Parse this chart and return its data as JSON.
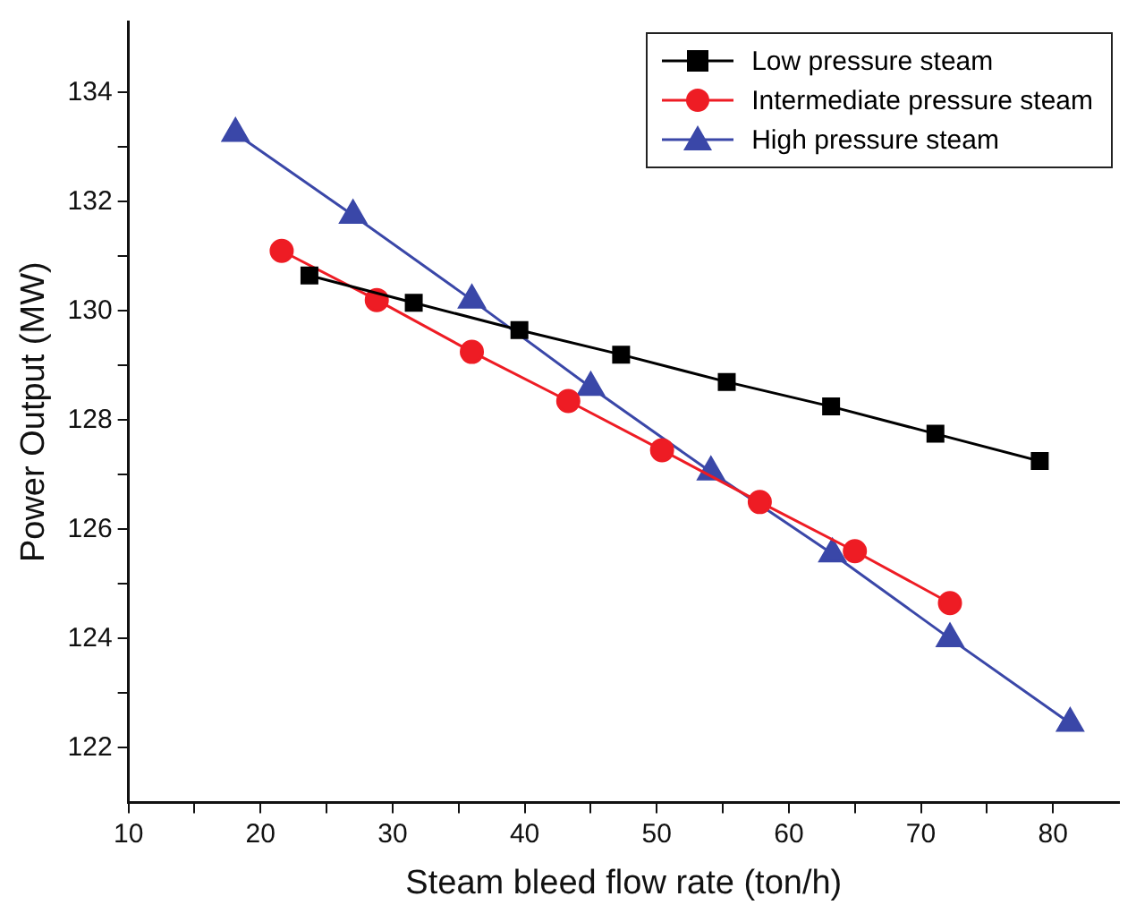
{
  "chart_data": {
    "type": "line",
    "xlabel": "Steam bleed flow rate (ton/h)",
    "ylabel": "Power Output (MW)",
    "xlim": [
      10,
      85
    ],
    "ylim": [
      121,
      135.3
    ],
    "xticks": [
      10,
      {
        "value": 15,
        "label": null
      },
      20,
      {
        "value": 25,
        "label": null
      },
      30,
      {
        "value": 35,
        "label": null
      },
      40,
      {
        "value": 45,
        "label": null
      },
      50,
      {
        "value": 55,
        "label": null
      },
      60,
      {
        "value": 65,
        "label": null
      },
      70,
      {
        "value": 75,
        "label": null
      },
      80
    ],
    "yticks": [
      122,
      {
        "value": 123,
        "label": null
      },
      124,
      {
        "value": 125,
        "label": null
      },
      126,
      {
        "value": 127,
        "label": null
      },
      128,
      {
        "value": 129,
        "label": null
      },
      130,
      {
        "value": 131,
        "label": null
      },
      132,
      {
        "value": 133,
        "label": null
      },
      134
    ],
    "legend": "top right",
    "line_style": "solid",
    "series": [
      {
        "name": "Low pressure steam",
        "color": "#000000",
        "marker": "square",
        "x": [
          23.7,
          31.6,
          39.6,
          47.3,
          55.3,
          63.2,
          71.1,
          79.0
        ],
        "values": [
          130.65,
          130.15,
          129.65,
          129.2,
          128.7,
          128.25,
          127.75,
          127.25
        ]
      },
      {
        "name": "Intermediate pressure steam",
        "color": "#ee1c24",
        "marker": "circle",
        "x": [
          21.6,
          28.8,
          36.0,
          43.3,
          50.4,
          57.8,
          65.0,
          72.2
        ],
        "values": [
          131.1,
          130.2,
          129.25,
          128.35,
          127.45,
          126.5,
          125.6,
          124.65
        ]
      },
      {
        "name": "High pressure steam",
        "color": "#3a47a8",
        "marker": "triangle",
        "x": [
          18.1,
          27.0,
          36.0,
          45.0,
          54.1,
          63.3,
          72.2,
          81.3
        ],
        "values": [
          133.25,
          131.75,
          130.2,
          128.6,
          127.05,
          125.55,
          124.0,
          122.45
        ]
      }
    ]
  }
}
